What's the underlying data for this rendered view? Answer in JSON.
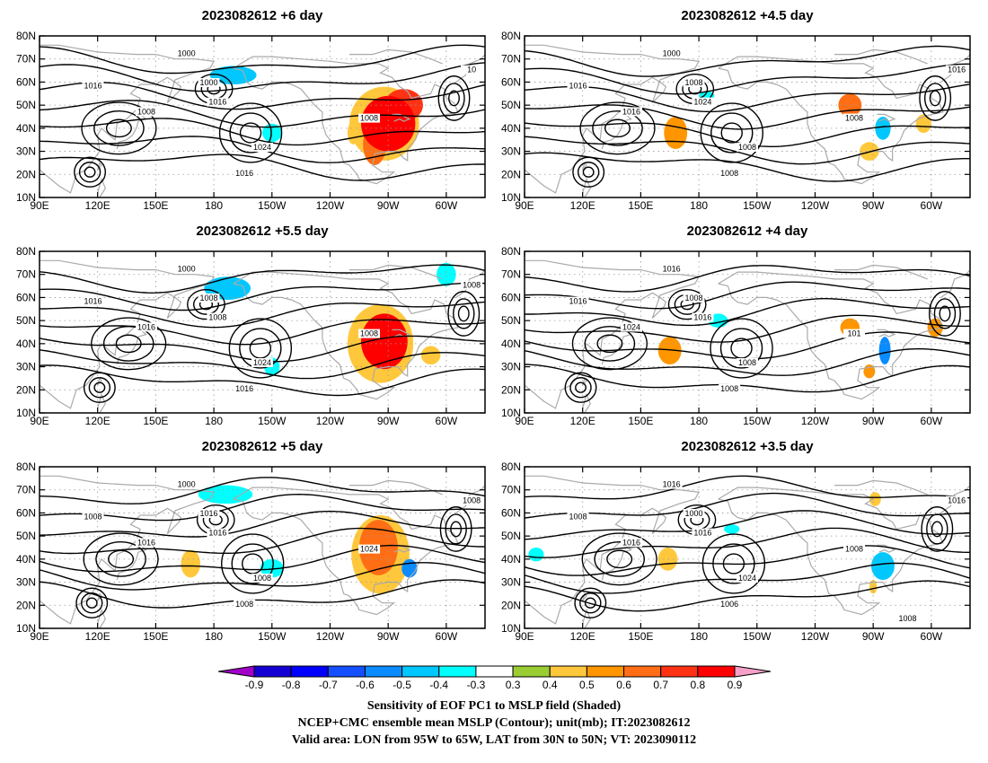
{
  "panels": [
    {
      "title": "2023082612 +6 day",
      "contour_labels": [
        "1000",
        "1000",
        "1016",
        "1008",
        "1016",
        "1024",
        "1008",
        "1016",
        "10"
      ],
      "shading": [
        {
          "lon": 270,
          "lat": 42,
          "rx": 14,
          "ry": 12,
          "value": 0.8
        },
        {
          "lon": 278,
          "lat": 50,
          "rx": 10,
          "ry": 7,
          "value": 0.7
        },
        {
          "lon": 263,
          "lat": 33,
          "rx": 6,
          "ry": 9,
          "value": 0.6
        },
        {
          "lon": 268,
          "lat": 42,
          "rx": 18,
          "ry": 16,
          "value": 0.4
        },
        {
          "lon": 190,
          "lat": 63,
          "rx": 12,
          "ry": 4,
          "value": -0.5
        },
        {
          "lon": 210,
          "lat": 38,
          "rx": 5,
          "ry": 4,
          "value": -0.4
        },
        {
          "lon": 252,
          "lat": 38,
          "rx": 3,
          "ry": 5,
          "value": 0.4
        }
      ]
    },
    {
      "title": "2023082612 +4.5 day",
      "contour_labels": [
        "1000",
        "1008",
        "1016",
        "1016",
        "1024",
        "1008",
        "1008",
        "1008",
        "1016"
      ],
      "shading": [
        {
          "lon": 168,
          "lat": 38,
          "rx": 6,
          "ry": 7,
          "value": 0.5
        },
        {
          "lon": 258,
          "lat": 50,
          "rx": 6,
          "ry": 5,
          "value": 0.6
        },
        {
          "lon": 275,
          "lat": 40,
          "rx": 4,
          "ry": 5,
          "value": -0.5
        },
        {
          "lon": 268,
          "lat": 30,
          "rx": 5,
          "ry": 4,
          "value": 0.4
        },
        {
          "lon": 296,
          "lat": 42,
          "rx": 4,
          "ry": 4,
          "value": 0.4
        },
        {
          "lon": 184,
          "lat": 54,
          "rx": 4,
          "ry": 2,
          "value": -0.4
        }
      ]
    },
    {
      "title": "2023082612 +5.5 day",
      "contour_labels": [
        "1000",
        "1008",
        "1016",
        "1016",
        "1008",
        "1024",
        "1008",
        "1016",
        "1008"
      ],
      "shading": [
        {
          "lon": 268,
          "lat": 41,
          "rx": 12,
          "ry": 12,
          "value": 0.8
        },
        {
          "lon": 266,
          "lat": 40,
          "rx": 17,
          "ry": 17,
          "value": 0.4
        },
        {
          "lon": 187,
          "lat": 64,
          "rx": 12,
          "ry": 5,
          "value": -0.5
        },
        {
          "lon": 210,
          "lat": 30,
          "rx": 4,
          "ry": 4,
          "value": -0.4
        },
        {
          "lon": 292,
          "lat": 35,
          "rx": 5,
          "ry": 4,
          "value": 0.4
        },
        {
          "lon": 300,
          "lat": 70,
          "rx": 5,
          "ry": 5,
          "value": -0.4
        }
      ]
    },
    {
      "title": "2023082612 +4 day",
      "contour_labels": [
        "1016",
        "1008",
        "1016",
        "1024",
        "1016",
        "1008",
        "101",
        "1008"
      ],
      "shading": [
        {
          "lon": 165,
          "lat": 37,
          "rx": 6,
          "ry": 6,
          "value": 0.5
        },
        {
          "lon": 258,
          "lat": 47,
          "rx": 5,
          "ry": 4,
          "value": 0.5
        },
        {
          "lon": 276,
          "lat": 37,
          "rx": 3,
          "ry": 6,
          "value": -0.6
        },
        {
          "lon": 268,
          "lat": 28,
          "rx": 3,
          "ry": 3,
          "value": 0.5
        },
        {
          "lon": 302,
          "lat": 47,
          "rx": 4,
          "ry": 4,
          "value": 0.5
        },
        {
          "lon": 190,
          "lat": 50,
          "rx": 5,
          "ry": 3,
          "value": -0.4
        }
      ]
    },
    {
      "title": "2023082612 +5 day",
      "contour_labels": [
        "1000",
        "1016",
        "1008",
        "1016",
        "1016",
        "1008",
        "1024",
        "1008",
        "1008"
      ],
      "shading": [
        {
          "lon": 265,
          "lat": 45,
          "rx": 10,
          "ry": 12,
          "value": 0.6
        },
        {
          "lon": 266,
          "lat": 42,
          "rx": 15,
          "ry": 17,
          "value": 0.4
        },
        {
          "lon": 281,
          "lat": 36,
          "rx": 4,
          "ry": 4,
          "value": -0.6
        },
        {
          "lon": 186,
          "lat": 68,
          "rx": 14,
          "ry": 4,
          "value": -0.4
        },
        {
          "lon": 210,
          "lat": 36,
          "rx": 6,
          "ry": 4,
          "value": -0.4
        },
        {
          "lon": 168,
          "lat": 38,
          "rx": 5,
          "ry": 6,
          "value": 0.4
        }
      ]
    },
    {
      "title": "2023082612 +3.5 day",
      "contour_labels": [
        "1016",
        "1000",
        "1008",
        "1016",
        "1016",
        "1024",
        "1008",
        "1006",
        "1016",
        "1008"
      ],
      "shading": [
        {
          "lon": 164,
          "lat": 40,
          "rx": 5,
          "ry": 5,
          "value": 0.4
        },
        {
          "lon": 275,
          "lat": 37,
          "rx": 6,
          "ry": 6,
          "value": -0.5
        },
        {
          "lon": 270,
          "lat": 28,
          "rx": 2,
          "ry": 3,
          "value": 0.4
        },
        {
          "lon": 271,
          "lat": 66,
          "rx": 3,
          "ry": 3,
          "value": 0.4
        },
        {
          "lon": 197,
          "lat": 53,
          "rx": 4,
          "ry": 2,
          "value": -0.4
        },
        {
          "lon": 96,
          "lat": 42,
          "rx": 4,
          "ry": 3,
          "value": -0.4
        }
      ]
    }
  ],
  "axes": {
    "lon_ticks": [
      90,
      120,
      150,
      180,
      210,
      240,
      270,
      300
    ],
    "lon_labels": [
      "90E",
      "120E",
      "150E",
      "180",
      "150W",
      "120W",
      "90W",
      "60W"
    ],
    "lat_ticks": [
      10,
      20,
      30,
      40,
      50,
      60,
      70,
      80
    ],
    "lat_labels": [
      "10N",
      "20N",
      "30N",
      "40N",
      "50N",
      "60N",
      "70N",
      "80N"
    ],
    "lon_range": [
      90,
      320
    ],
    "lat_range": [
      10,
      80
    ]
  },
  "colorbar": {
    "labels": [
      "-0.9",
      "-0.8",
      "-0.7",
      "-0.6",
      "-0.5",
      "-0.4",
      "-0.3",
      "0.3",
      "0.4",
      "0.5",
      "0.6",
      "0.7",
      "0.8",
      "0.9"
    ],
    "colors": [
      "#a000c8",
      "#1400d2",
      "#0000ff",
      "#1450ff",
      "#0a8cff",
      "#00c8ff",
      "#00ffff",
      "#ffffff",
      "#9acd32",
      "#ffc83c",
      "#ff9600",
      "#ff6e14",
      "#ff3214",
      "#ff0000",
      "#f5a0c8"
    ]
  },
  "caption": {
    "line1": "Sensitivity of EOF PC1 to MSLP field (Shaded)",
    "line2": "NCEP+CMC ensemble mean MSLP (Contour); unit(mb); IT:2023082612",
    "line3": "Valid area: LON from 95W to 65W, LAT from 30N to 50N; VT: 2023090112"
  }
}
